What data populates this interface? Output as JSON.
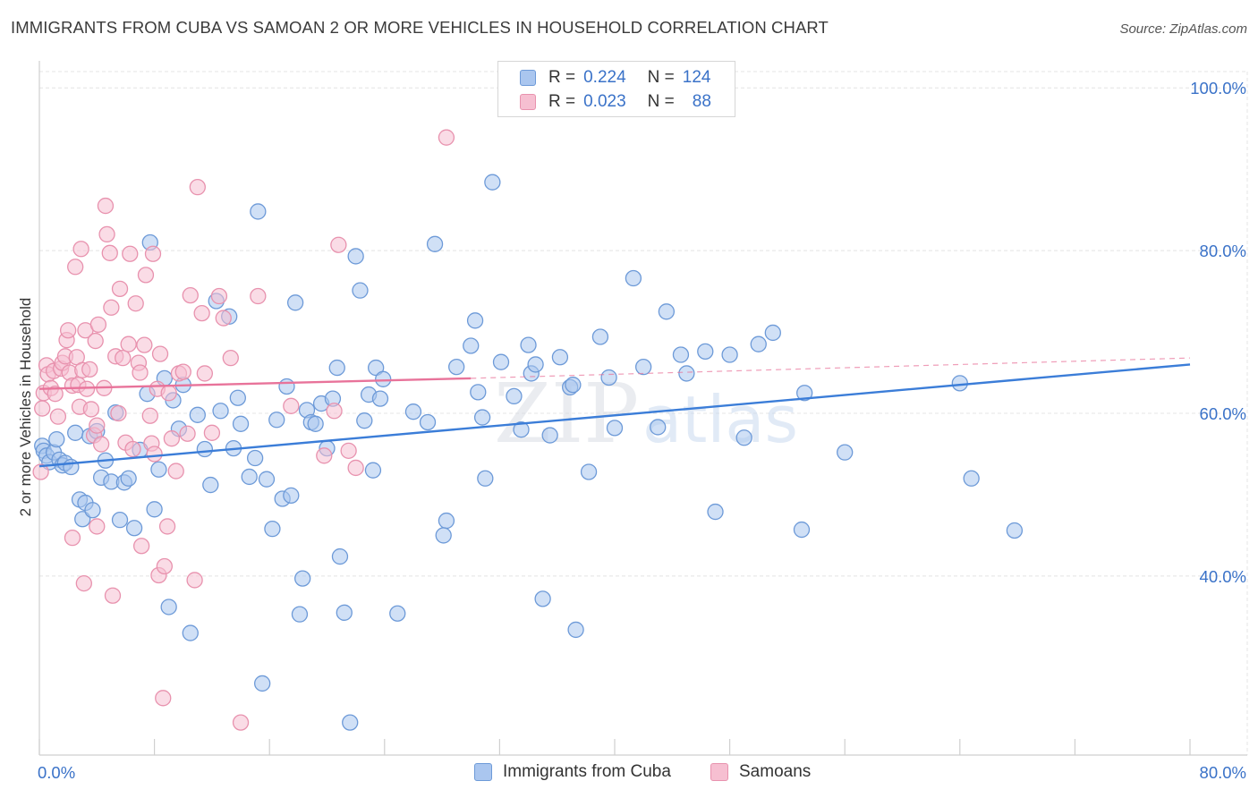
{
  "title": "IMMIGRANTS FROM CUBA VS SAMOAN 2 OR MORE VEHICLES IN HOUSEHOLD CORRELATION CHART",
  "source": "Source: ZipAtlas.com",
  "watermark": "ZIPatlas",
  "colors": {
    "blue_fill": "#aac6ef",
    "blue_stroke": "#6d9ad8",
    "blue_line": "#3b7dd8",
    "pink_fill": "#f6bfd1",
    "pink_stroke": "#e892ae",
    "pink_line": "#e8739a",
    "tick_label": "#3a72c8",
    "grid": "#e4e4e4"
  },
  "legend": {
    "rows": [
      {
        "r_label": "R =",
        "r_value": "0.224",
        "n_label": "N =",
        "n_value": "124"
      },
      {
        "r_label": "R =",
        "r_value": "0.023",
        "n_label": "N =",
        "n_value": "88"
      }
    ]
  },
  "bottom_legend": [
    "Immigrants from Cuba",
    "Samoans"
  ],
  "chart_data": {
    "type": "scatter",
    "title": "IMMIGRANTS FROM CUBA VS SAMOAN 2 OR MORE VEHICLES IN HOUSEHOLD CORRELATION CHART",
    "xlabel": "",
    "ylabel": "2 or more Vehicles in Household",
    "xlim": [
      0,
      80
    ],
    "ylim": [
      18,
      102
    ],
    "x_tick_labels": [
      "0.0%",
      "80.0%"
    ],
    "y_ticks": [
      40,
      60,
      80,
      100
    ],
    "y_tick_labels": [
      "40.0%",
      "60.0%",
      "80.0%",
      "100.0%"
    ],
    "grid": true,
    "legend_position": "top-center",
    "series": [
      {
        "name": "Immigrants from Cuba",
        "r": 0.224,
        "n": 124,
        "trend": {
          "x": [
            0,
            80
          ],
          "y": [
            53.5,
            66.0
          ],
          "style": "solid"
        },
        "points": [
          [
            0.2,
            56.0
          ],
          [
            0.3,
            55.4
          ],
          [
            0.5,
            54.8
          ],
          [
            0.7,
            54.0
          ],
          [
            1.0,
            55.2
          ],
          [
            1.2,
            56.8
          ],
          [
            1.4,
            54.3
          ],
          [
            1.6,
            53.6
          ],
          [
            1.8,
            53.9
          ],
          [
            2.2,
            53.4
          ],
          [
            2.5,
            57.6
          ],
          [
            2.8,
            49.4
          ],
          [
            3.0,
            47.0
          ],
          [
            3.2,
            49.0
          ],
          [
            3.5,
            57.2
          ],
          [
            3.7,
            48.1
          ],
          [
            4.0,
            57.8
          ],
          [
            4.3,
            52.1
          ],
          [
            4.6,
            54.2
          ],
          [
            5.0,
            51.6
          ],
          [
            5.3,
            60.1
          ],
          [
            5.6,
            46.9
          ],
          [
            5.9,
            51.5
          ],
          [
            6.2,
            52.0
          ],
          [
            6.6,
            45.9
          ],
          [
            7.0,
            55.5
          ],
          [
            7.5,
            62.4
          ],
          [
            7.7,
            81.0
          ],
          [
            8.0,
            48.2
          ],
          [
            8.3,
            53.1
          ],
          [
            8.7,
            64.3
          ],
          [
            9.0,
            36.2
          ],
          [
            9.3,
            61.6
          ],
          [
            9.7,
            58.1
          ],
          [
            10.0,
            63.5
          ],
          [
            10.5,
            33.0
          ],
          [
            11.0,
            59.8
          ],
          [
            11.5,
            55.6
          ],
          [
            11.9,
            51.2
          ],
          [
            12.3,
            73.8
          ],
          [
            12.6,
            60.3
          ],
          [
            13.2,
            71.9
          ],
          [
            13.5,
            55.7
          ],
          [
            13.8,
            61.9
          ],
          [
            14.0,
            58.7
          ],
          [
            14.6,
            52.2
          ],
          [
            15.0,
            54.5
          ],
          [
            15.2,
            84.8
          ],
          [
            15.5,
            26.8
          ],
          [
            15.8,
            51.9
          ],
          [
            16.2,
            45.8
          ],
          [
            16.5,
            59.2
          ],
          [
            16.9,
            49.5
          ],
          [
            17.2,
            63.3
          ],
          [
            17.5,
            49.9
          ],
          [
            17.8,
            73.6
          ],
          [
            18.3,
            39.7
          ],
          [
            18.1,
            35.3
          ],
          [
            18.6,
            60.4
          ],
          [
            18.9,
            58.9
          ],
          [
            19.2,
            58.7
          ],
          [
            19.6,
            61.2
          ],
          [
            20.0,
            55.7
          ],
          [
            20.4,
            61.8
          ],
          [
            20.7,
            65.6
          ],
          [
            20.9,
            42.4
          ],
          [
            21.2,
            35.5
          ],
          [
            21.6,
            22.0
          ],
          [
            22.0,
            79.3
          ],
          [
            22.3,
            75.1
          ],
          [
            22.6,
            59.1
          ],
          [
            22.9,
            62.3
          ],
          [
            23.2,
            53.0
          ],
          [
            23.4,
            65.6
          ],
          [
            23.7,
            61.8
          ],
          [
            23.9,
            64.2
          ],
          [
            24.9,
            35.4
          ],
          [
            26.0,
            60.2
          ],
          [
            27.0,
            58.9
          ],
          [
            27.5,
            80.8
          ],
          [
            28.3,
            46.8
          ],
          [
            28.1,
            45.0
          ],
          [
            29.0,
            65.7
          ],
          [
            30.0,
            68.3
          ],
          [
            30.3,
            71.4
          ],
          [
            30.5,
            62.6
          ],
          [
            30.8,
            59.5
          ],
          [
            31.0,
            52.0
          ],
          [
            31.5,
            88.4
          ],
          [
            32.1,
            66.3
          ],
          [
            33.0,
            62.1
          ],
          [
            33.5,
            58.0
          ],
          [
            34.0,
            68.4
          ],
          [
            34.2,
            64.9
          ],
          [
            34.5,
            66.0
          ],
          [
            35.0,
            37.2
          ],
          [
            35.5,
            57.3
          ],
          [
            36.2,
            66.9
          ],
          [
            36.9,
            63.2
          ],
          [
            37.3,
            33.4
          ],
          [
            37.1,
            63.5
          ],
          [
            38.2,
            52.8
          ],
          [
            39.0,
            69.4
          ],
          [
            39.6,
            64.4
          ],
          [
            40.0,
            58.2
          ],
          [
            41.3,
            76.6
          ],
          [
            42.0,
            65.7
          ],
          [
            43.0,
            58.3
          ],
          [
            43.6,
            72.5
          ],
          [
            44.6,
            67.2
          ],
          [
            45.0,
            64.9
          ],
          [
            46.3,
            67.6
          ],
          [
            47.0,
            47.9
          ],
          [
            48.0,
            67.2
          ],
          [
            49.0,
            57.0
          ],
          [
            50.0,
            68.5
          ],
          [
            51.0,
            69.9
          ],
          [
            53.0,
            45.7
          ],
          [
            53.2,
            62.5
          ],
          [
            56.0,
            55.2
          ],
          [
            64.0,
            63.7
          ],
          [
            64.8,
            52.0
          ],
          [
            67.8,
            45.6
          ]
        ]
      },
      {
        "name": "Samoans",
        "r": 0.023,
        "n": 88,
        "trend": {
          "x": [
            0,
            30
          ],
          "y": [
            63.0,
            64.3
          ],
          "style": "solid",
          "dashed_extension": {
            "x": [
              30,
              80
            ],
            "y": [
              64.3,
              66.8
            ]
          }
        },
        "points": [
          [
            0.1,
            52.8
          ],
          [
            0.2,
            60.6
          ],
          [
            0.3,
            62.5
          ],
          [
            0.5,
            65.9
          ],
          [
            0.6,
            64.8
          ],
          [
            0.8,
            63.1
          ],
          [
            1.0,
            65.2
          ],
          [
            1.1,
            62.4
          ],
          [
            1.3,
            59.6
          ],
          [
            1.5,
            65.5
          ],
          [
            1.6,
            66.2
          ],
          [
            1.8,
            67.0
          ],
          [
            1.9,
            69.0
          ],
          [
            2.0,
            70.2
          ],
          [
            2.1,
            65.0
          ],
          [
            2.3,
            63.4
          ],
          [
            2.3,
            44.7
          ],
          [
            2.5,
            78.0
          ],
          [
            2.6,
            66.9
          ],
          [
            2.7,
            63.5
          ],
          [
            2.8,
            60.8
          ],
          [
            2.9,
            80.2
          ],
          [
            3.0,
            65.3
          ],
          [
            3.1,
            39.1
          ],
          [
            3.2,
            70.2
          ],
          [
            3.3,
            63.0
          ],
          [
            3.5,
            65.4
          ],
          [
            3.6,
            60.5
          ],
          [
            3.8,
            57.3
          ],
          [
            3.9,
            68.9
          ],
          [
            4.0,
            58.5
          ],
          [
            4.0,
            46.1
          ],
          [
            4.1,
            70.9
          ],
          [
            4.3,
            56.2
          ],
          [
            4.5,
            63.1
          ],
          [
            4.6,
            85.5
          ],
          [
            4.7,
            82.0
          ],
          [
            4.9,
            79.7
          ],
          [
            5.0,
            73.0
          ],
          [
            5.1,
            37.6
          ],
          [
            5.3,
            67.0
          ],
          [
            5.5,
            60.0
          ],
          [
            5.6,
            75.3
          ],
          [
            5.8,
            66.8
          ],
          [
            6.0,
            56.4
          ],
          [
            6.2,
            68.5
          ],
          [
            6.3,
            79.6
          ],
          [
            6.5,
            55.6
          ],
          [
            6.7,
            73.5
          ],
          [
            6.9,
            66.2
          ],
          [
            7.0,
            65.0
          ],
          [
            7.1,
            43.7
          ],
          [
            7.3,
            68.4
          ],
          [
            7.4,
            77.0
          ],
          [
            7.7,
            59.7
          ],
          [
            7.8,
            56.3
          ],
          [
            7.9,
            79.6
          ],
          [
            8.0,
            55.0
          ],
          [
            8.2,
            63.0
          ],
          [
            8.3,
            40.1
          ],
          [
            8.4,
            67.3
          ],
          [
            8.6,
            25.0
          ],
          [
            8.7,
            41.2
          ],
          [
            8.9,
            46.1
          ],
          [
            9.0,
            62.5
          ],
          [
            9.2,
            56.9
          ],
          [
            9.5,
            52.9
          ],
          [
            9.7,
            64.9
          ],
          [
            10.0,
            65.1
          ],
          [
            10.3,
            57.5
          ],
          [
            10.5,
            74.5
          ],
          [
            10.8,
            39.5
          ],
          [
            11.0,
            87.8
          ],
          [
            11.3,
            72.3
          ],
          [
            11.5,
            64.9
          ],
          [
            12.0,
            57.6
          ],
          [
            12.5,
            74.4
          ],
          [
            12.8,
            71.7
          ],
          [
            13.3,
            66.8
          ],
          [
            14.0,
            22.0
          ],
          [
            15.2,
            74.4
          ],
          [
            17.5,
            60.9
          ],
          [
            19.8,
            54.8
          ],
          [
            20.5,
            60.3
          ],
          [
            20.8,
            80.7
          ],
          [
            21.5,
            55.4
          ],
          [
            22.0,
            53.3
          ],
          [
            28.3,
            93.9
          ]
        ]
      }
    ]
  }
}
